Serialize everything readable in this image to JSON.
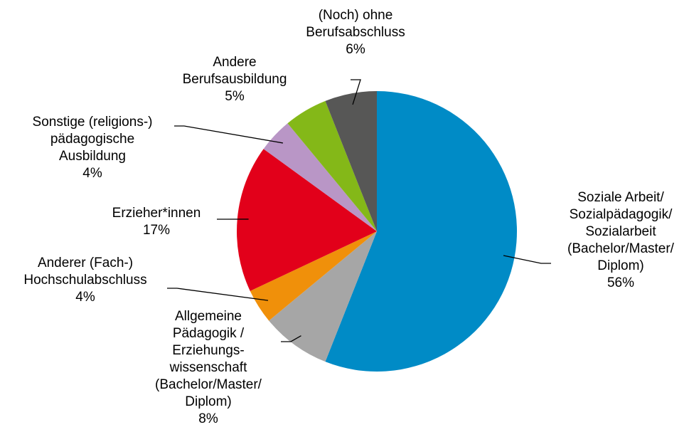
{
  "chart_data": {
    "type": "pie",
    "categories": [
      "Soziale Arbeit/\nSozialpädagogik/\nSozialarbeit\n(Bachelor/Master/\nDiplom)",
      "Allgemeine\nPädagogik /\nErziehungs-\nwissenschaft\n(Bachelor/Master/\nDiplom)",
      "Anderer (Fach-)\nHochschulabschluss",
      "Erzieher*innen",
      "Sonstige (religions-)\npädagogische\nAusbildung",
      "Andere\nBerufsausbildung",
      "(Noch) ohne\nBerufsabschluss"
    ],
    "values": [
      56,
      8,
      4,
      17,
      4,
      5,
      6
    ],
    "value_labels": [
      "56%",
      "8%",
      "4%",
      "17%",
      "4%",
      "5%",
      "6%"
    ],
    "colors": [
      "#008bc6",
      "#a6a6a6",
      "#f0900a",
      "#e2001a",
      "#b996c6",
      "#84b818",
      "#575756"
    ]
  }
}
